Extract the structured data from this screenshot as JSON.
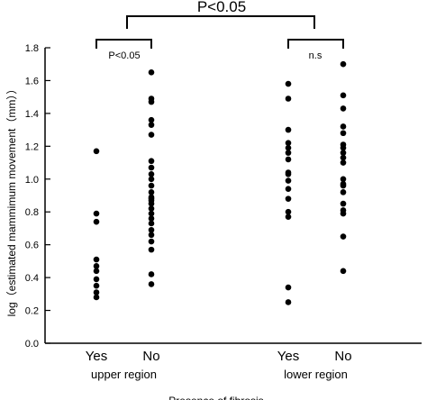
{
  "chart_data": {
    "type": "scatter",
    "ylabel": "log（estimated mammimum movement（mm））",
    "xlabel": "Presence of fibrosis",
    "ylim": [
      0,
      1.8
    ],
    "yticks": [
      "0.0",
      "0.2",
      "0.4",
      "0.6",
      "0.8",
      "1.0",
      "1.2",
      "1.4",
      "1.6",
      "1.8"
    ],
    "categories": [
      "Yes",
      "No",
      "Yes",
      "No"
    ],
    "groups": [
      "upper region",
      "lower region"
    ],
    "series": [
      {
        "category": "Yes",
        "group": "upper region",
        "values": [
          1.17,
          0.79,
          0.74,
          0.51,
          0.47,
          0.44,
          0.39,
          0.35,
          0.31,
          0.28
        ]
      },
      {
        "category": "No",
        "group": "upper region",
        "values": [
          1.65,
          1.49,
          1.47,
          1.36,
          1.33,
          1.27,
          1.11,
          1.07,
          1.03,
          1.0,
          0.96,
          0.92,
          0.89,
          0.88,
          0.87,
          0.85,
          0.82,
          0.79,
          0.76,
          0.73,
          0.69,
          0.66,
          0.62,
          0.57,
          0.42,
          0.36
        ]
      },
      {
        "category": "Yes",
        "group": "lower region",
        "values": [
          1.58,
          1.49,
          1.3,
          1.22,
          1.19,
          1.16,
          1.12,
          1.04,
          1.03,
          0.99,
          0.94,
          0.88,
          0.8,
          0.77,
          0.34,
          0.25
        ]
      },
      {
        "category": "No",
        "group": "lower region",
        "values": [
          1.7,
          1.51,
          1.43,
          1.32,
          1.28,
          1.21,
          1.19,
          1.16,
          1.13,
          1.1,
          1.0,
          0.97,
          0.96,
          0.92,
          0.85,
          0.81,
          0.79,
          0.65,
          0.44
        ]
      }
    ],
    "comparisons": [
      {
        "label": "P<0.05",
        "between": "upper region vs lower region"
      },
      {
        "label": "P<0.05",
        "between": "upper region: Yes vs No"
      },
      {
        "label": "n.s",
        "between": "lower region: Yes vs No"
      }
    ]
  }
}
